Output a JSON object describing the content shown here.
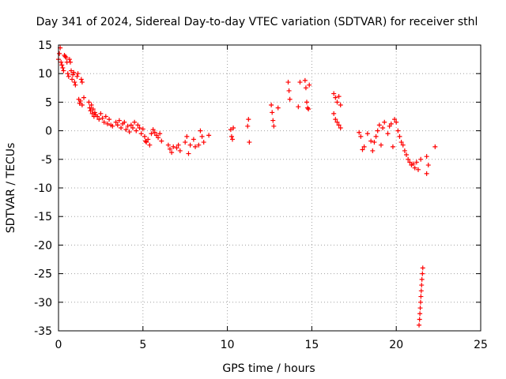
{
  "chart_data": {
    "type": "scatter",
    "title": "Day 341 of 2024, Sidereal Day-to-day VTEC variation (SDTVAR) for receiver sthl",
    "xlabel": "GPS time / hours",
    "ylabel": "SDTVAR / TECUs",
    "xlim": [
      0,
      25
    ],
    "ylim": [
      -35,
      15
    ],
    "xticks": [
      0,
      5,
      10,
      15,
      20,
      25
    ],
    "yticks": [
      -35,
      -30,
      -25,
      -20,
      -15,
      -10,
      -5,
      0,
      5,
      10,
      15
    ],
    "grid": true,
    "marker": "+",
    "color": "#ff0000",
    "series": [
      {
        "name": "SDTVAR",
        "points": [
          [
            0.0,
            12.5
          ],
          [
            0.05,
            13.5
          ],
          [
            0.1,
            14.5
          ],
          [
            0.15,
            12.0
          ],
          [
            0.2,
            11.5
          ],
          [
            0.25,
            11.0
          ],
          [
            0.3,
            10.5
          ],
          [
            0.35,
            13.2
          ],
          [
            0.4,
            13.0
          ],
          [
            0.45,
            12.8
          ],
          [
            0.5,
            12.0
          ],
          [
            0.55,
            10.0
          ],
          [
            0.6,
            9.5
          ],
          [
            0.65,
            12.5
          ],
          [
            0.7,
            12.0
          ],
          [
            0.75,
            10.5
          ],
          [
            0.8,
            9.0
          ],
          [
            0.85,
            9.8
          ],
          [
            0.9,
            10.2
          ],
          [
            0.95,
            8.5
          ],
          [
            1.0,
            8.0
          ],
          [
            1.1,
            9.5
          ],
          [
            1.15,
            10.0
          ],
          [
            1.2,
            5.5
          ],
          [
            1.25,
            4.8
          ],
          [
            1.3,
            5.2
          ],
          [
            1.35,
            9.0
          ],
          [
            1.4,
            8.5
          ],
          [
            1.5,
            5.8
          ],
          [
            1.4,
            4.5
          ],
          [
            1.8,
            5.0
          ],
          [
            1.85,
            4.0
          ],
          [
            1.9,
            3.5
          ],
          [
            1.95,
            4.5
          ],
          [
            2.0,
            3.0
          ],
          [
            2.05,
            3.8
          ],
          [
            2.1,
            2.5
          ],
          [
            2.15,
            3.2
          ],
          [
            2.2,
            2.8
          ],
          [
            2.3,
            2.5
          ],
          [
            2.4,
            2.0
          ],
          [
            2.5,
            3.0
          ],
          [
            2.6,
            2.2
          ],
          [
            2.7,
            1.5
          ],
          [
            2.8,
            2.5
          ],
          [
            2.9,
            1.2
          ],
          [
            3.0,
            2.0
          ],
          [
            3.1,
            1.0
          ],
          [
            3.2,
            0.8
          ],
          [
            3.4,
            1.5
          ],
          [
            3.5,
            1.0
          ],
          [
            3.6,
            1.8
          ],
          [
            3.7,
            0.5
          ],
          [
            3.8,
            1.2
          ],
          [
            3.9,
            1.5
          ],
          [
            4.0,
            0.2
          ],
          [
            4.1,
            0.8
          ],
          [
            4.2,
            -0.2
          ],
          [
            4.3,
            1.0
          ],
          [
            4.4,
            0.5
          ],
          [
            4.5,
            1.5
          ],
          [
            4.6,
            0.0
          ],
          [
            4.7,
            1.0
          ],
          [
            4.8,
            0.5
          ],
          [
            4.9,
            -0.5
          ],
          [
            5.0,
            0.3
          ],
          [
            5.1,
            -1.0
          ],
          [
            5.15,
            -1.8
          ],
          [
            5.2,
            -2.0
          ],
          [
            5.3,
            -1.5
          ],
          [
            5.4,
            -2.5
          ],
          [
            5.5,
            -0.5
          ],
          [
            5.6,
            0.2
          ],
          [
            5.7,
            -0.3
          ],
          [
            5.8,
            -0.8
          ],
          [
            5.9,
            -1.2
          ],
          [
            6.0,
            -0.5
          ],
          [
            6.1,
            -1.8
          ],
          [
            6.5,
            -2.5
          ],
          [
            6.6,
            -3.2
          ],
          [
            6.7,
            -3.8
          ],
          [
            6.8,
            -2.8
          ],
          [
            7.0,
            -3.0
          ],
          [
            7.1,
            -2.5
          ],
          [
            7.2,
            -3.5
          ],
          [
            7.5,
            -2.0
          ],
          [
            7.6,
            -1.0
          ],
          [
            7.7,
            -4.0
          ],
          [
            7.8,
            -2.5
          ],
          [
            8.0,
            -1.5
          ],
          [
            8.1,
            -2.8
          ],
          [
            8.3,
            -2.5
          ],
          [
            8.4,
            0.0
          ],
          [
            8.5,
            -1.0
          ],
          [
            8.6,
            -2.0
          ],
          [
            8.9,
            -0.8
          ],
          [
            10.2,
            0.2
          ],
          [
            10.25,
            -1.0
          ],
          [
            10.3,
            -1.5
          ],
          [
            10.35,
            0.5
          ],
          [
            11.2,
            0.8
          ],
          [
            11.25,
            2.0
          ],
          [
            11.3,
            -2.0
          ],
          [
            12.6,
            4.5
          ],
          [
            12.65,
            3.2
          ],
          [
            12.7,
            1.8
          ],
          [
            12.75,
            0.8
          ],
          [
            13.0,
            4.0
          ],
          [
            13.6,
            8.5
          ],
          [
            13.65,
            7.0
          ],
          [
            13.7,
            5.5
          ],
          [
            14.2,
            4.2
          ],
          [
            14.3,
            8.5
          ],
          [
            14.6,
            8.8
          ],
          [
            14.65,
            7.5
          ],
          [
            14.7,
            5.0
          ],
          [
            14.75,
            4.0
          ],
          [
            14.8,
            3.8
          ],
          [
            14.85,
            8.0
          ],
          [
            16.3,
            6.5
          ],
          [
            16.4,
            5.8
          ],
          [
            16.5,
            5.0
          ],
          [
            16.6,
            6.0
          ],
          [
            16.7,
            4.5
          ],
          [
            16.3,
            3.0
          ],
          [
            16.4,
            2.0
          ],
          [
            16.5,
            1.5
          ],
          [
            16.6,
            1.0
          ],
          [
            16.7,
            0.5
          ],
          [
            17.8,
            -0.3
          ],
          [
            17.9,
            -1.0
          ],
          [
            18.0,
            -3.3
          ],
          [
            18.1,
            -2.8
          ],
          [
            18.3,
            -0.5
          ],
          [
            18.5,
            -1.8
          ],
          [
            18.6,
            -3.5
          ],
          [
            18.7,
            -2.0
          ],
          [
            18.8,
            -1.0
          ],
          [
            18.9,
            0.0
          ],
          [
            19.0,
            1.0
          ],
          [
            19.1,
            -2.5
          ],
          [
            19.2,
            0.5
          ],
          [
            19.3,
            1.5
          ],
          [
            19.5,
            -0.5
          ],
          [
            19.6,
            0.8
          ],
          [
            19.7,
            1.2
          ],
          [
            19.8,
            -2.8
          ],
          [
            19.9,
            2.0
          ],
          [
            20.0,
            1.5
          ],
          [
            20.1,
            0.0
          ],
          [
            20.2,
            -1.0
          ],
          [
            20.3,
            -2.0
          ],
          [
            20.4,
            -2.5
          ],
          [
            20.5,
            -3.5
          ],
          [
            20.6,
            -4.2
          ],
          [
            20.7,
            -5.0
          ],
          [
            20.8,
            -5.5
          ],
          [
            20.9,
            -6.0
          ],
          [
            21.0,
            -5.8
          ],
          [
            21.1,
            -6.5
          ],
          [
            21.2,
            -5.5
          ],
          [
            21.3,
            -6.8
          ],
          [
            21.45,
            -5.0
          ],
          [
            21.8,
            -4.5
          ],
          [
            21.9,
            -6.0
          ],
          [
            21.8,
            -7.5
          ],
          [
            22.3,
            -2.8
          ],
          [
            21.35,
            -34.0
          ],
          [
            21.38,
            -33.0
          ],
          [
            21.4,
            -32.0
          ],
          [
            21.42,
            -31.0
          ],
          [
            21.44,
            -30.0
          ],
          [
            21.46,
            -29.0
          ],
          [
            21.48,
            -28.0
          ],
          [
            21.5,
            -27.0
          ],
          [
            21.52,
            -26.0
          ],
          [
            21.55,
            -25.0
          ],
          [
            21.57,
            -24.0
          ]
        ]
      }
    ]
  }
}
